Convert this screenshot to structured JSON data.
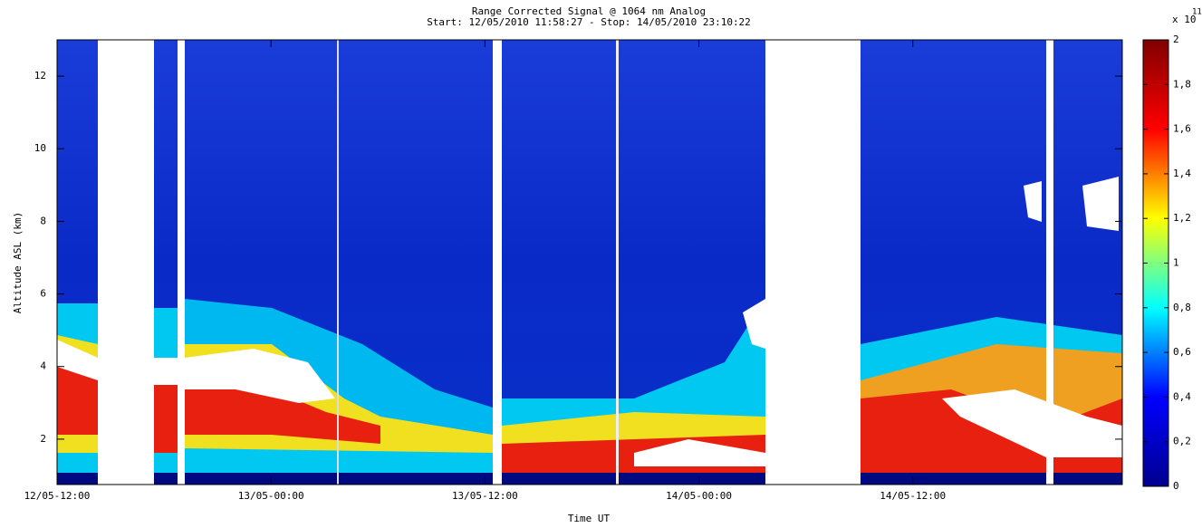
{
  "chart_data": {
    "type": "heatmap",
    "title": "Range Corrected Signal @ 1064 nm Analog",
    "subtitle": "Start: 12/05/2010 11:58:27 - Stop: 14/05/2010 23:10:22",
    "x_label": "Time UT",
    "y_label": "Altitude ASL (km)",
    "xlim": [
      "2010-05-12T12:00",
      "2010-05-14T23:45"
    ],
    "xticks": [
      {
        "value": "2010-05-12T12:00",
        "label": "12/05-12:00"
      },
      {
        "value": "2010-05-13T00:00",
        "label": "13/05-00:00"
      },
      {
        "value": "2010-05-13T12:00",
        "label": "13/05-12:00"
      },
      {
        "value": "2010-05-14T00:00",
        "label": "14/05-00:00"
      },
      {
        "value": "2010-05-14T12:00",
        "label": "14/05-12:00"
      }
    ],
    "ylim": [
      0.75,
      13
    ],
    "yticks": [
      2,
      4,
      6,
      8,
      10,
      12
    ],
    "colorbar": {
      "lim": [
        0,
        2
      ],
      "multiplier": "x 10",
      "exponent": "11",
      "colormap": [
        "#00008f",
        "#0000ff",
        "#00ffff",
        "#ffff00",
        "#ff0000",
        "#800000"
      ],
      "ticks": [
        0,
        {
          "value": 0.2,
          "label": "0,2"
        },
        {
          "value": 0.4,
          "label": "0,4"
        },
        {
          "value": 0.6,
          "label": "0,6"
        },
        {
          "value": 0.8,
          "label": "0,8"
        },
        1,
        {
          "value": 1.2,
          "label": "1,2"
        },
        {
          "value": 1.4,
          "label": "1,4"
        },
        {
          "value": 1.6,
          "label": "1,6"
        },
        {
          "value": 1.8,
          "label": "1,8"
        },
        2
      ]
    }
  }
}
